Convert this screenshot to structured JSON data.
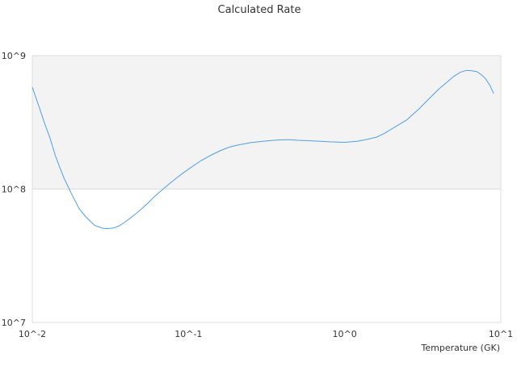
{
  "chart_data": {
    "type": "line",
    "title": "Calculated Rate",
    "xlabel": "Temperature (GK)",
    "ylabel": "",
    "x_scale": "log",
    "y_scale": "log",
    "xlim": [
      0.01,
      10
    ],
    "ylim": [
      10000000,
      1000000000
    ],
    "x_ticks": [
      {
        "value": 0.01,
        "label": "10^-2"
      },
      {
        "value": 0.1,
        "label": "10^-1"
      },
      {
        "value": 1,
        "label": "10^0"
      },
      {
        "value": 10,
        "label": "10^1"
      }
    ],
    "y_ticks": [
      {
        "value": 10000000,
        "label": "10^7"
      },
      {
        "value": 100000000,
        "label": "10^8"
      },
      {
        "value": 1000000000,
        "label": "10^9"
      }
    ],
    "alternating_bands": true,
    "band_color": "#f3f3f3",
    "line_color": "#4f9fe8",
    "legend": "none",
    "series": [
      {
        "x": [
          0.01,
          0.011,
          0.012,
          0.013,
          0.014,
          0.015,
          0.016,
          0.018,
          0.02,
          0.022,
          0.025,
          0.028,
          0.03,
          0.033,
          0.036,
          0.04,
          0.045,
          0.05,
          0.055,
          0.06,
          0.07,
          0.08,
          0.09,
          0.1,
          0.12,
          0.14,
          0.16,
          0.18,
          0.2,
          0.25,
          0.3,
          0.35,
          0.4,
          0.45,
          0.5,
          0.6,
          0.7,
          0.8,
          0.9,
          1.0,
          1.2,
          1.4,
          1.6,
          1.8,
          2.0,
          2.5,
          3.0,
          3.5,
          4.0,
          4.5,
          5.0,
          5.5,
          6.0,
          6.5,
          7.0,
          7.5,
          8.0,
          8.5,
          9.0
        ],
        "y": [
          580000000,
          420000000,
          310000000,
          240000000,
          180000000,
          145000000,
          120000000,
          90000000,
          71000000,
          62000000,
          53500000,
          51000000,
          50500000,
          51000000,
          53000000,
          57500000,
          64000000,
          71000000,
          78500000,
          87000000,
          102000000,
          116000000,
          129000000,
          141000000,
          163000000,
          180000000,
          194000000,
          205000000,
          212000000,
          223000000,
          228000000,
          232000000,
          234000000,
          234000000,
          232000000,
          230000000,
          228000000,
          226000000,
          225000000,
          224000000,
          228000000,
          236000000,
          245000000,
          262000000,
          282000000,
          330000000,
          400000000,
          480000000,
          560000000,
          630000000,
          700000000,
          750000000,
          775000000,
          770000000,
          760000000,
          720000000,
          670000000,
          600000000,
          520000000
        ]
      }
    ]
  }
}
